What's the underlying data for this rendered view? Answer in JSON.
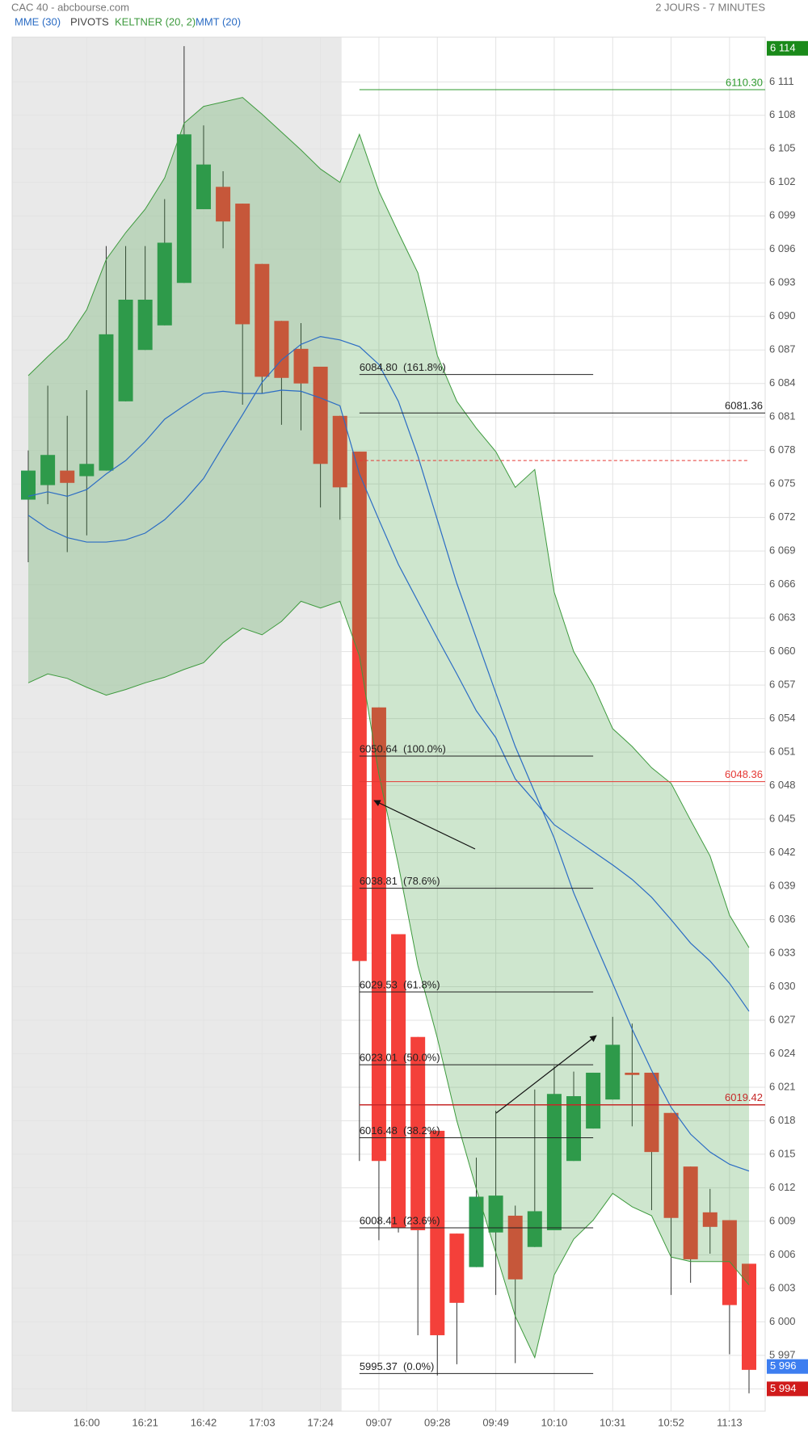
{
  "chart_data": {
    "type": "candlestick",
    "title": "CAC 40 - abcbourse.com",
    "subtitle": "2 JOURS - 7 MINUTES",
    "categories": [
      null,
      null,
      null,
      "16:00",
      null,
      null,
      "16:21",
      null,
      null,
      "16:42",
      null,
      null,
      "17:03",
      null,
      null,
      "17:24",
      null,
      null,
      "09:07",
      null,
      null,
      "09:28",
      null,
      null,
      "09:49",
      null,
      null,
      "10:10",
      null,
      null,
      "10:31",
      null,
      null,
      "10:52",
      null,
      null,
      "11:13",
      null
    ],
    "open": [
      6073.6,
      6074.9,
      6076.2,
      6075.7,
      6076.2,
      6082.4,
      6087.0,
      6089.2,
      6093.0,
      6099.6,
      6101.6,
      6100.1,
      6094.7,
      6089.6,
      6087.1,
      6085.5,
      6081.1,
      6077.9,
      6055.0,
      6034.7,
      6025.5,
      6017.1,
      6007.9,
      6004.9,
      6008.0,
      6009.5,
      6006.7,
      6008.2,
      6014.4,
      6017.3,
      6019.9,
      6022.3,
      6022.3,
      6018.7,
      6013.9,
      6009.8,
      6009.1,
      6005.2
    ],
    "high": [
      6078.0,
      6083.8,
      6081.1,
      6083.4,
      6096.3,
      6096.3,
      6096.3,
      6100.5,
      6114.2,
      6107.1,
      6103.0,
      6100.1,
      6094.7,
      6089.6,
      6089.4,
      6085.5,
      6081.1,
      6077.9,
      6055.0,
      6034.7,
      6025.5,
      6017.1,
      6007.9,
      6014.7,
      6018.9,
      6010.4,
      6020.8,
      6022.9,
      6022.4,
      6022.3,
      6027.3,
      6026.7,
      6022.3,
      6018.7,
      6013.9,
      6011.9,
      6009.1,
      6005.2
    ],
    "low": [
      6068.0,
      6073.2,
      6068.9,
      6070.4,
      6076.2,
      6082.4,
      6087.0,
      6089.2,
      6093.0,
      6099.6,
      6096.1,
      6082.1,
      6083.1,
      6080.3,
      6079.8,
      6072.9,
      6071.8,
      6014.4,
      6007.3,
      6008.0,
      5998.8,
      5995.2,
      5996.2,
      6004.9,
      6002.4,
      5996.3,
      6006.7,
      6008.2,
      6014.4,
      6017.3,
      6019.9,
      6017.5,
      6010.0,
      6002.4,
      6003.5,
      6006.1,
      5997.1,
      5993.6
    ],
    "close": [
      6076.2,
      6077.6,
      6075.1,
      6076.8,
      6088.4,
      6091.5,
      6091.5,
      6096.6,
      6106.3,
      6103.6,
      6098.5,
      6089.3,
      6084.6,
      6084.5,
      6084.0,
      6076.8,
      6074.7,
      6032.3,
      6014.4,
      6008.4,
      6008.2,
      5998.8,
      6001.7,
      6011.2,
      6011.3,
      6003.8,
      6009.9,
      6020.4,
      6020.2,
      6022.3,
      6024.8,
      6022.1,
      6015.2,
      6009.3,
      6005.6,
      6008.5,
      6001.5,
      5995.7
    ],
    "up_color": "#2a9a4f",
    "down_color": "#f4403a",
    "ylim": [
      5992,
      6115
    ],
    "yticks": [
      {
        "value": 5994,
        "label": "5 994"
      },
      {
        "value": 5997,
        "label": "5 997"
      },
      {
        "value": 6000,
        "label": "6 000"
      },
      {
        "value": 6003,
        "label": "6 003"
      },
      {
        "value": 6006,
        "label": "6 006"
      },
      {
        "value": 6009,
        "label": "6 009"
      },
      {
        "value": 6012,
        "label": "6 012"
      },
      {
        "value": 6015,
        "label": "6 015"
      },
      {
        "value": 6018,
        "label": "6 018"
      },
      {
        "value": 6021,
        "label": "6 021"
      },
      {
        "value": 6024,
        "label": "6 024"
      },
      {
        "value": 6027,
        "label": "6 027"
      },
      {
        "value": 6030,
        "label": "6 030"
      },
      {
        "value": 6033,
        "label": "6 033"
      },
      {
        "value": 6036,
        "label": "6 036"
      },
      {
        "value": 6039,
        "label": "6 039"
      },
      {
        "value": 6042,
        "label": "6 042"
      },
      {
        "value": 6045,
        "label": "6 045"
      },
      {
        "value": 6048,
        "label": "6 048"
      },
      {
        "value": 6051,
        "label": "6 051"
      },
      {
        "value": 6054,
        "label": "6 054"
      },
      {
        "value": 6057,
        "label": "6 057"
      },
      {
        "value": 6060,
        "label": "6 060"
      },
      {
        "value": 6063,
        "label": "6 063"
      },
      {
        "value": 6066,
        "label": "6 066"
      },
      {
        "value": 6069,
        "label": "6 069"
      },
      {
        "value": 6072,
        "label": "6 072"
      },
      {
        "value": 6075,
        "label": "6 075"
      },
      {
        "value": 6078,
        "label": "6 078"
      },
      {
        "value": 6081,
        "label": "6 081"
      },
      {
        "value": 6084,
        "label": "6 084"
      },
      {
        "value": 6087,
        "label": "6 087"
      },
      {
        "value": 6090,
        "label": "6 090"
      },
      {
        "value": 6093,
        "label": "6 093"
      },
      {
        "value": 6096,
        "label": "6 096"
      },
      {
        "value": 6099,
        "label": "6 099"
      },
      {
        "value": 6102,
        "label": "6 102"
      },
      {
        "value": 6105,
        "label": "6 105"
      },
      {
        "value": 6108,
        "label": "6 108"
      },
      {
        "value": 6111,
        "label": "6 111"
      }
    ],
    "grid": true,
    "indicators": [
      {
        "name": "MME (30)",
        "color": "#2b6cc4",
        "values": [
          6072.2,
          6071.0,
          6070.2,
          6069.8,
          6069.8,
          6070.0,
          6070.6,
          6071.8,
          6073.5,
          6075.5,
          6078.4,
          6081.2,
          6084.1,
          6086.1,
          6087.5,
          6088.2,
          6087.9,
          6087.3,
          6085.7,
          6082.4,
          6077.5,
          6071.8,
          6066.1,
          6061.2,
          6056.3,
          6051.5,
          6047.4,
          6043.3,
          6038.4,
          6034.3,
          6030.3,
          6026.2,
          6022.5,
          6019.2,
          6016.8,
          6015.2,
          6014.1,
          6013.5
        ]
      },
      {
        "name": "PIVOTS",
        "color": "#444444"
      },
      {
        "name": "KELTNER (20, 2)",
        "color": "#3d9a3d",
        "upper": [
          6084.7,
          6086.4,
          6088.0,
          6090.6,
          6095.1,
          6097.5,
          6099.6,
          6102.4,
          6107.3,
          6108.8,
          6109.2,
          6109.6,
          6108.1,
          6106.5,
          6104.9,
          6103.2,
          6102.0,
          6106.3,
          6101.2,
          6097.5,
          6093.9,
          6086.5,
          6082.4,
          6080.0,
          6077.9,
          6074.7,
          6076.3,
          6065.3,
          6060.0,
          6057.0,
          6053.1,
          6051.5,
          6049.6,
          6048.2,
          6044.9,
          6041.7,
          6036.4,
          6033.5
        ],
        "lower": [
          6057.2,
          6058.0,
          6057.6,
          6056.8,
          6056.1,
          6056.6,
          6057.2,
          6057.7,
          6058.4,
          6059.0,
          6060.8,
          6062.1,
          6061.5,
          6062.7,
          6064.5,
          6063.9,
          6064.5,
          6059.6,
          6049.0,
          6040.9,
          6031.9,
          6025.4,
          6018.0,
          6011.9,
          6006.2,
          6000.5,
          5996.8,
          6004.2,
          6007.4,
          6009.1,
          6011.5,
          6010.3,
          6009.5,
          6005.8,
          6005.4,
          6005.4,
          6005.4,
          6003.3
        ]
      },
      {
        "name": "MMT (20)",
        "color": "#2b6cc4",
        "values": [
          6073.9,
          6074.3,
          6073.9,
          6074.5,
          6075.9,
          6077.1,
          6078.8,
          6080.8,
          6082.0,
          6083.1,
          6083.3,
          6083.1,
          6083.1,
          6083.4,
          6083.3,
          6082.7,
          6082.0,
          6075.9,
          6071.8,
          6067.8,
          6064.5,
          6061.2,
          6058.0,
          6054.7,
          6052.3,
          6048.6,
          6046.6,
          6044.5,
          6043.3,
          6042.1,
          6040.9,
          6039.6,
          6038.0,
          6036.0,
          6033.9,
          6032.3,
          6030.3,
          6027.8
        ]
      }
    ],
    "pivots": [
      {
        "value": 6110.3,
        "label": "6110.30",
        "color": "#2e9a2e"
      },
      {
        "value": 6081.36,
        "label": "6081.36",
        "color": "#222222"
      },
      {
        "value": 6048.36,
        "label": "6048.36",
        "color": "#e53935"
      },
      {
        "value": 6019.42,
        "label": "6019.42",
        "color": "#c62828"
      }
    ],
    "reference_line": {
      "value": 6077.1,
      "color": "#e53935"
    },
    "fibonacci": [
      {
        "value": 6084.8,
        "label": "6084.80  (161.8%)"
      },
      {
        "value": 6050.64,
        "label": "6050.64  (100.0%)"
      },
      {
        "value": 6038.81,
        "label": "6038.81  (78.6%)"
      },
      {
        "value": 6029.53,
        "label": "6029.53  (61.8%)"
      },
      {
        "value": 6023.01,
        "label": "6023.01  (50.0%)"
      },
      {
        "value": 6016.48,
        "label": "6016.48  (38.2%)"
      },
      {
        "value": 6008.41,
        "label": "6008.41  (23.6%)"
      },
      {
        "value": 5995.37,
        "label": "5995.37  (0.0%)"
      }
    ],
    "price_tags": [
      {
        "value": 6114,
        "label": "6 114",
        "color": "#1a8a1a"
      },
      {
        "value": 5996,
        "label": "5 996",
        "color": "#3d7ef0"
      },
      {
        "value": 5994,
        "label": "5 994",
        "color": "#d01b1b"
      }
    ]
  }
}
